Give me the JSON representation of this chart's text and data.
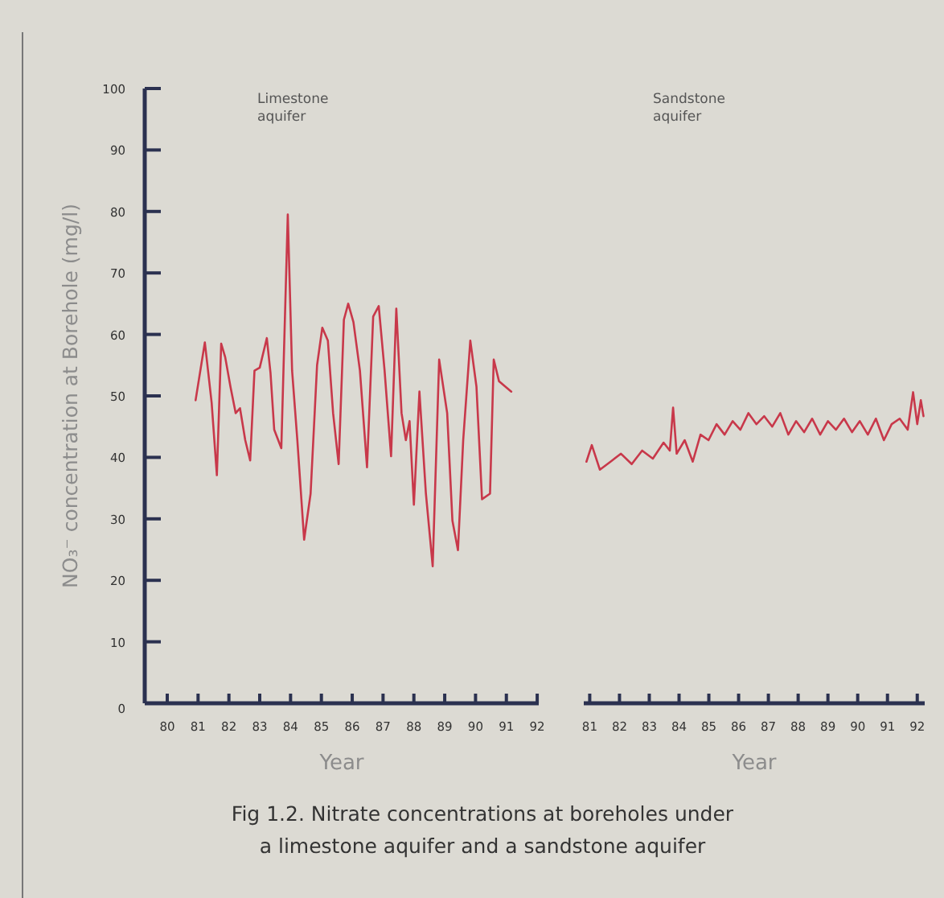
{
  "chart_data": [
    {
      "type": "line",
      "title": "Limestone aquifer",
      "xlabel": "Year",
      "ylabel": "NO₃⁻ concentration at Borehole (mg/l)",
      "xlim": [
        79.27,
        92.05
      ],
      "ylim": [
        0,
        100
      ],
      "xticks": [
        80,
        81,
        82,
        83,
        84,
        85,
        86,
        87,
        88,
        89,
        90,
        91,
        92
      ],
      "yticks": [
        0,
        10,
        20,
        30,
        40,
        50,
        60,
        70,
        80,
        90,
        100
      ],
      "series": [
        {
          "color": "#c8384a",
          "x": [
            80.92,
            81.22,
            81.44,
            81.61,
            81.75,
            81.88,
            82.05,
            82.22,
            82.36,
            82.53,
            82.69,
            82.83,
            83.0,
            83.23,
            83.35,
            83.47,
            83.7,
            83.91,
            84.05,
            84.22,
            84.44,
            84.65,
            84.86,
            85.03,
            85.21,
            85.38,
            85.56,
            85.73,
            85.87,
            86.04,
            86.25,
            86.48,
            86.68,
            86.86,
            87.05,
            87.26,
            87.43,
            87.6,
            87.74,
            87.86,
            88.0,
            88.18,
            88.39,
            88.61,
            88.82,
            89.08,
            89.25,
            89.43,
            89.6,
            89.83,
            90.03,
            90.21,
            90.47,
            90.59,
            90.76,
            91.16
          ],
          "values": [
            49.3,
            58.7,
            48.9,
            37.1,
            58.5,
            56.3,
            51.5,
            47.2,
            48,
            42.8,
            39.5,
            54.1,
            54.6,
            59.4,
            53.7,
            44.5,
            41.5,
            79.5,
            54.1,
            42.8,
            26.6,
            34.1,
            55,
            61.1,
            59,
            47.2,
            38.9,
            62.4,
            65,
            62,
            54.1,
            38.4,
            62.9,
            64.6,
            54.1,
            40.2,
            64.2,
            47.2,
            42.8,
            45.9,
            32.3,
            50.7,
            34.1,
            22.3,
            55.9,
            47.2,
            29.7,
            24.9,
            42.8,
            59,
            51.5,
            33.2,
            34.1,
            55.9,
            52.4,
            50.7
          ]
        }
      ],
      "annotations": [
        "Fig 1.2. Nitrate concentrations at boreholes under a limestone aquifer and a sandstone aquifer"
      ]
    },
    {
      "type": "line",
      "title": "Sandstone aquifer",
      "xlabel": "Year",
      "xlim": [
        80.8,
        92.25
      ],
      "ylim": [
        0,
        100
      ],
      "xticks": [
        81,
        82,
        83,
        84,
        85,
        86,
        87,
        88,
        89,
        90,
        91,
        92
      ],
      "tick_labels": "x",
      "series": [
        {
          "color": "#c8384a",
          "x": [
            80.89,
            81.07,
            81.34,
            81.7,
            82.05,
            82.41,
            82.76,
            83.12,
            83.48,
            83.69,
            83.8,
            83.92,
            84.19,
            84.46,
            84.72,
            84.99,
            85.26,
            85.53,
            85.8,
            86.06,
            86.33,
            86.6,
            86.86,
            87.13,
            87.4,
            87.67,
            87.93,
            88.2,
            88.47,
            88.74,
            89.0,
            89.27,
            89.54,
            89.81,
            90.07,
            90.34,
            90.61,
            90.88,
            91.14,
            91.41,
            91.68,
            91.86,
            92.0,
            92.12,
            92.21
          ],
          "values": [
            39.3,
            42,
            38,
            39.3,
            40.6,
            38.9,
            41.1,
            39.8,
            42.4,
            41.1,
            48.1,
            40.6,
            42.8,
            39.3,
            43.7,
            42.8,
            45.4,
            43.7,
            45.9,
            44.5,
            47.2,
            45.4,
            46.7,
            45,
            47.2,
            43.7,
            45.9,
            44.1,
            46.3,
            43.7,
            45.9,
            44.5,
            46.3,
            44.1,
            45.9,
            43.7,
            46.3,
            42.8,
            45.4,
            46.3,
            44.5,
            50.6,
            45.4,
            49.3,
            46.7
          ]
        }
      ]
    }
  ]
}
